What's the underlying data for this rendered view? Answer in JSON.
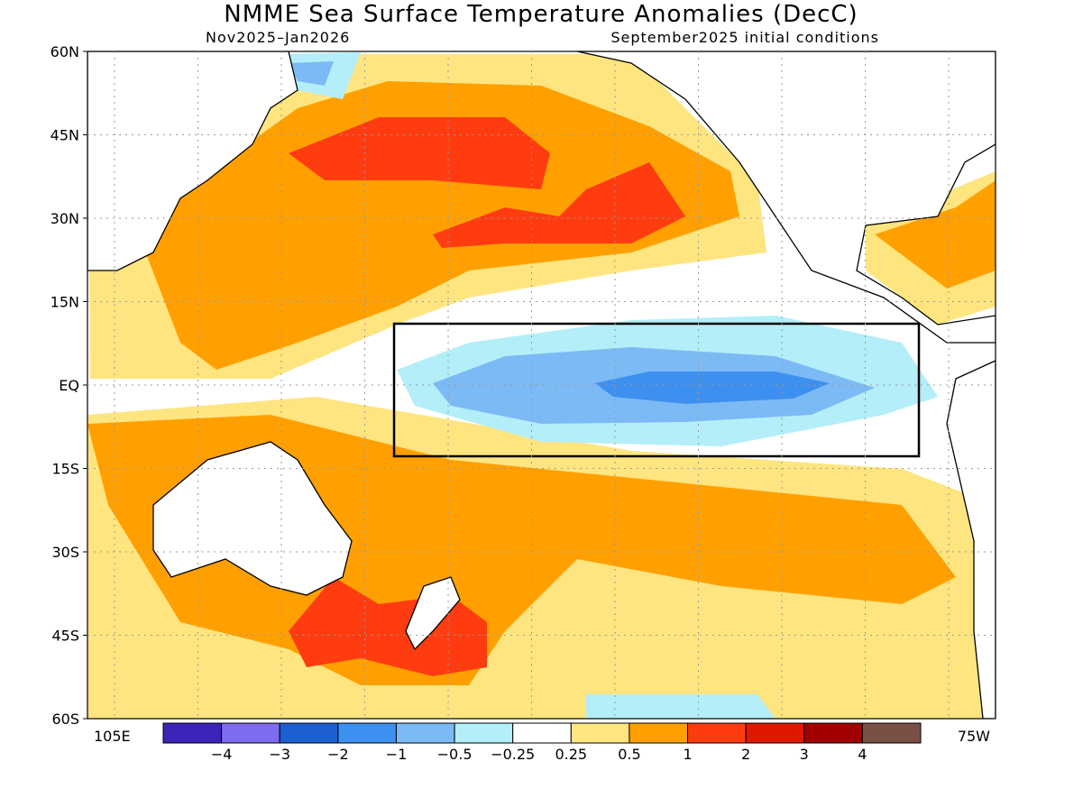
{
  "title": "NMME Sea Surface Temperature Anomalies (DecC)",
  "subtitle_left": "Nov2025–Jan2026",
  "subtitle_right": "September2025 initial conditions",
  "lat_labels": [
    "60N",
    "45N",
    "30N",
    "15N",
    "EQ",
    "15S",
    "30S",
    "45S",
    "60S"
  ],
  "lon_labels": [
    "105E",
    "75W"
  ],
  "colorbar": {
    "colors": [
      "#3b24b8",
      "#7e6cee",
      "#1c5fd0",
      "#3d8ff0",
      "#7cbaf6",
      "#b4eef8",
      "#ffffff",
      "#ffe580",
      "#ffa000",
      "#ff3c10",
      "#e01800",
      "#a00000",
      "#7a5046"
    ],
    "labels": [
      "−4",
      "−3",
      "−2",
      "−1",
      "−0.5",
      "−0.25",
      "0.25",
      "0.5",
      "1",
      "2",
      "3",
      "4"
    ]
  }
}
